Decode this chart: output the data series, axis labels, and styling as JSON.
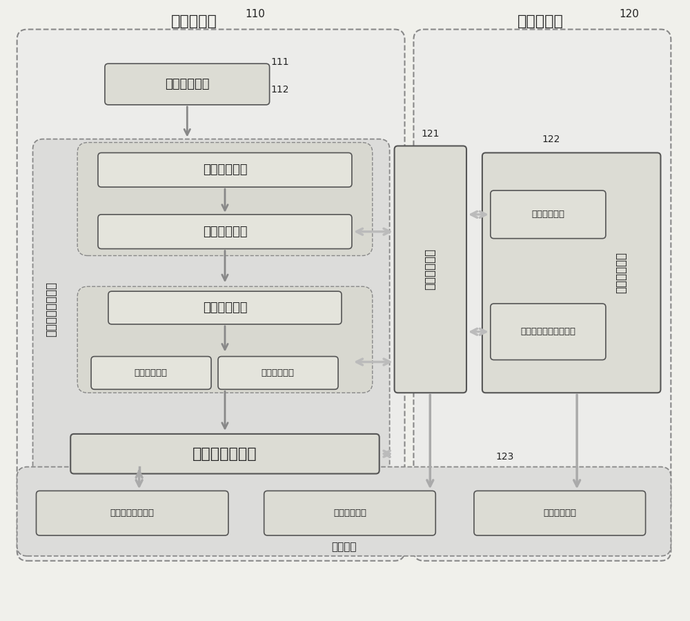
{
  "bg_color": "#f5f5f0",
  "box_fill": "#e8e8e0",
  "box_fill_dark": "#d0d0c8",
  "box_fill_white": "#ffffff",
  "text_color": "#222222",
  "border_color": "#555555",
  "dashed_color": "#888888",
  "font_size_large": 16,
  "font_size_medium": 13,
  "font_size_small": 11,
  "font_size_label": 10,
  "outer_110_label": "110",
  "outer_120_label": "120",
  "server_device_label": "服务端设备",
  "config_server_label": "配置服务器",
  "module_111_label": "日志收集模块",
  "label_111": "111",
  "label_112": "112",
  "realtime_log_label": "实时日志处理模块",
  "module_subscribe_label": "日志订阅模块",
  "module_dispatch_label": "日志分发模块",
  "module_slice_label": "日志切分模块",
  "module_general_calc_label": "通用计算模块",
  "module_custom_calc_label": "定制计算模块",
  "module_summary_label": "汇总、输出模块",
  "label_121": "121",
  "realtime_comm_label": "实时通信模块",
  "label_122": "122",
  "module_task_config_label": "任务配置模块",
  "module_realtime_result_label": "实时运算结果展示模块",
  "user_interact_label": "用户交互模块",
  "label_123": "123",
  "module_cluster_monitor_label": "集群任务监控模块",
  "module_comm_monitor_label": "通信监控模块",
  "module_service_monitor_label": "服务监控模块",
  "monitor_label": "监控模块"
}
